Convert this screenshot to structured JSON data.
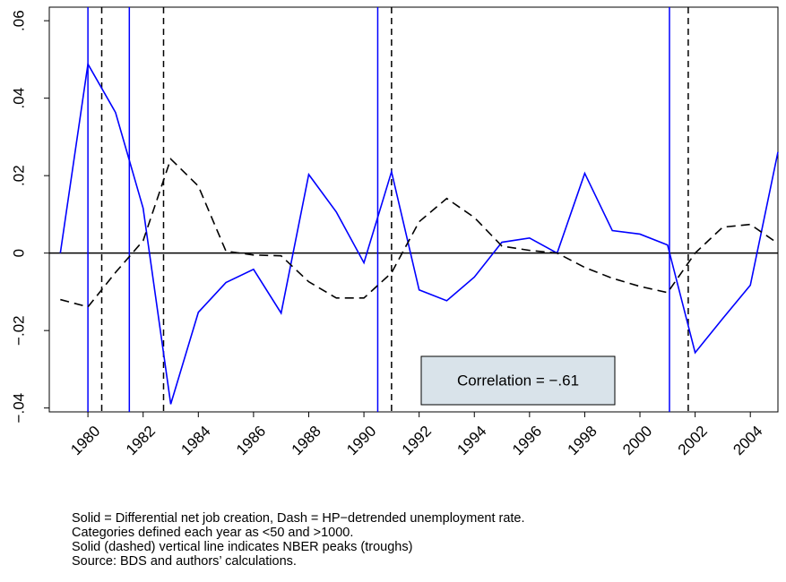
{
  "chart_data": {
    "type": "line",
    "x": [
      1979,
      1980,
      1981,
      1982,
      1983,
      1984,
      1985,
      1986,
      1987,
      1988,
      1989,
      1990,
      1991,
      1992,
      1993,
      1994,
      1995,
      1996,
      1997,
      1998,
      1999,
      2000,
      2001,
      2002,
      2003,
      2004,
      2005
    ],
    "series": [
      {
        "color": "#0000ff",
        "dash": "solid",
        "values": [
          0,
          0.0488,
          0.0363,
          0.0116,
          -0.039,
          -0.0153,
          -0.0076,
          -0.0042,
          -0.0155,
          0.0203,
          0.0106,
          -0.0025,
          0.021,
          -0.0095,
          -0.0123,
          -0.0062,
          0.0028,
          0.0039,
          0,
          0.0206,
          0.0058,
          0.0049,
          0.0021,
          -0.0257,
          -0.0169,
          -0.0083,
          0.0261
        ]
      },
      {
        "color": "#000000",
        "dash": "dashed",
        "values": [
          -0.012,
          -0.0139,
          -0.005,
          0.0032,
          0.0243,
          0.0173,
          0.0005,
          -0.0005,
          -0.0007,
          -0.0074,
          -0.0116,
          -0.0116,
          -0.0051,
          0.0081,
          0.0141,
          0.0092,
          0.0018,
          0.0007,
          0,
          -0.0037,
          -0.0065,
          -0.0086,
          -0.0102,
          0,
          0.0067,
          0.0074,
          0.0025
        ]
      }
    ],
    "xlim": [
      1978.6,
      2005
    ],
    "ylim": [
      -0.041,
      0.0635
    ],
    "xticks": [
      1980,
      1982,
      1984,
      1986,
      1988,
      1990,
      1992,
      1994,
      1996,
      1998,
      2000,
      2002,
      2004
    ],
    "yticks": [
      {
        "value": -0.04,
        "label": "−.04"
      },
      {
        "value": -0.02,
        "label": "−.02"
      },
      0,
      {
        "value": 0.02,
        "label": ".02"
      },
      {
        "value": 0.04,
        "label": ".04"
      },
      {
        "value": 0.06,
        "label": ".06"
      }
    ],
    "reference_line": 0,
    "peaks": {
      "color": "#0000ff",
      "x": [
        1980.0,
        1981.5,
        1990.5,
        2001.07
      ]
    },
    "troughs": {
      "color": "#000000",
      "x": [
        1980.5,
        1982.74,
        1991.0,
        2001.75
      ]
    },
    "annotation": "Correlation = −.61",
    "notes": [
      "Solid = Differential net job creation, Dash = HP−detrended unemployment rate.",
      "Categories defined each year as <50 and >1000.",
      "Solid (dashed) vertical line indicates NBER peaks (troughs)",
      "Source: BDS and authors’ calculations."
    ]
  }
}
